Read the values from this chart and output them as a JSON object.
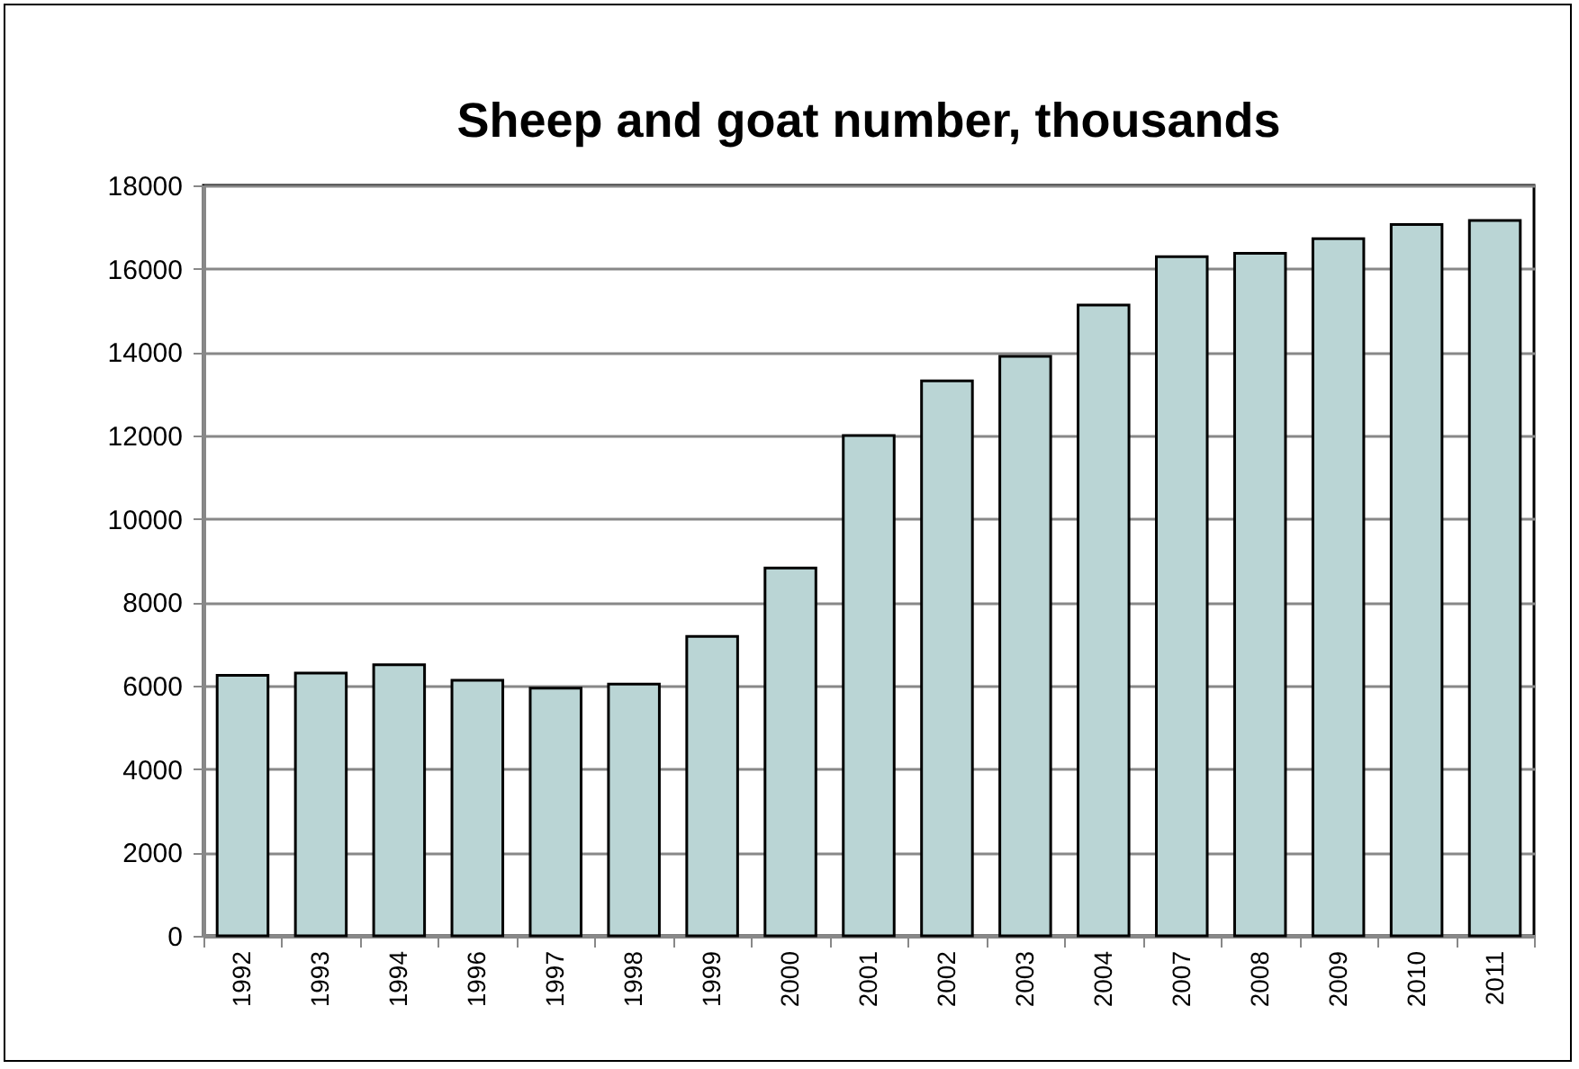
{
  "chart_data": {
    "type": "bar",
    "title": "Sheep and goat number, thousands",
    "categories": [
      "1992",
      "1993",
      "1994",
      "1996",
      "1997",
      "1998",
      "1999",
      "2000",
      "2001",
      "2002",
      "2003",
      "2004",
      "2007",
      "2008",
      "2009",
      "2010",
      "2011"
    ],
    "values": [
      6250,
      6300,
      6500,
      6130,
      5940,
      6040,
      7180,
      8820,
      12000,
      13310,
      13900,
      15130,
      16290,
      16370,
      16720,
      17060,
      17160
    ],
    "color": "#bad5d5",
    "ylim": [
      0,
      18000
    ],
    "yticks": [
      0,
      2000,
      4000,
      6000,
      8000,
      10000,
      12000,
      14000,
      16000,
      18000
    ],
    "grid": "y"
  }
}
